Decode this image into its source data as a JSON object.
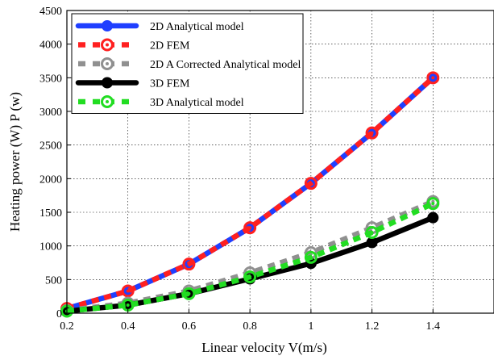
{
  "chart_data": {
    "type": "line",
    "xlabel": "Linear velocity V(m/s)",
    "ylabel": "Heating power (W) P (w)",
    "xlim": [
      0.2,
      1.6
    ],
    "ylim": [
      0,
      4500
    ],
    "xticks": [
      0.2,
      0.4,
      0.6,
      0.8,
      1,
      1.2,
      1.4
    ],
    "xtick_labels": [
      "0.2",
      "0.4",
      "0.6",
      "0.8",
      "1",
      "1.2",
      "1.4"
    ],
    "yticks": [
      0,
      500,
      1000,
      1500,
      2000,
      2500,
      3000,
      3500,
      4000,
      4500
    ],
    "ytick_labels": [
      "0",
      "500",
      "1000",
      "1500",
      "2000",
      "2500",
      "3000",
      "3500",
      "4000",
      "4500"
    ],
    "grid": true,
    "legend_position": "top-left",
    "x": [
      0.2,
      0.4,
      0.6,
      0.8,
      1.0,
      1.2,
      1.4
    ],
    "series": [
      {
        "name": "2D Analytical model",
        "values": [
          70,
          330,
          730,
          1270,
          1930,
          2680,
          3500
        ],
        "color": "#1f3fff",
        "style": "solid",
        "marker": "circle"
      },
      {
        "name": "2D FEM",
        "values": [
          70,
          330,
          730,
          1270,
          1930,
          2680,
          3500
        ],
        "color": "#ff2020",
        "style": "dotted",
        "marker": "circle"
      },
      {
        "name": "2D A Corrected Analytical model",
        "values": [
          40,
          150,
          330,
          600,
          900,
          1270,
          1660
        ],
        "color": "#909090",
        "style": "dotted",
        "marker": "circle"
      },
      {
        "name": "3D FEM",
        "values": [
          30,
          120,
          290,
          510,
          740,
          1050,
          1420
        ],
        "color": "#000000",
        "style": "solid",
        "marker": "circle"
      },
      {
        "name": "3D Analytical model",
        "values": [
          30,
          120,
          290,
          540,
          830,
          1200,
          1630
        ],
        "color": "#22dd22",
        "style": "dotted",
        "marker": "circle"
      }
    ]
  }
}
